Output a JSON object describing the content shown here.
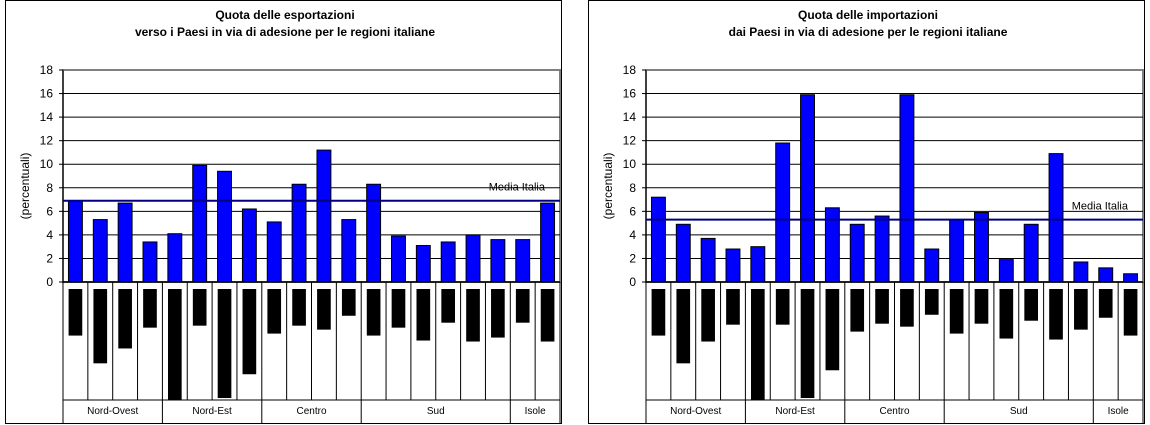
{
  "chart_data": [
    {
      "type": "bar",
      "title": [
        "Quota delle esportazioni",
        "verso i Paesi in via di adesione per le regioni italiane"
      ],
      "ylabel": "(percentuali)",
      "ylim": [
        0,
        18
      ],
      "yticks": [
        0,
        2,
        4,
        6,
        8,
        10,
        12,
        14,
        16,
        18
      ],
      "grid": true,
      "values": [
        6.9,
        5.3,
        6.7,
        3.4,
        4.1,
        9.9,
        9.4,
        6.2,
        5.1,
        8.3,
        11.2,
        5.3,
        8.3,
        3.9,
        3.1,
        3.4,
        4.0,
        3.6,
        3.6,
        6.7
      ],
      "label_lengths": [
        0.47,
        0.75,
        0.6,
        0.39,
        1.12,
        0.37,
        1.1,
        0.86,
        0.45,
        0.37,
        0.41,
        0.27,
        0.47,
        0.39,
        0.52,
        0.34,
        0.53,
        0.49,
        0.34,
        0.53
      ],
      "reference_line": {
        "value": 6.9,
        "label": "Media Italia"
      },
      "groups": [
        {
          "name": "Nord-Ovest",
          "count": 4
        },
        {
          "name": "Nord-Est",
          "count": 4
        },
        {
          "name": "Centro",
          "count": 4
        },
        {
          "name": "Sud",
          "count": 6
        },
        {
          "name": "Isole",
          "count": 2
        }
      ],
      "colors": {
        "bar": "#0000ff",
        "line": "#000080",
        "label_block": "#000000"
      }
    },
    {
      "type": "bar",
      "title": [
        "Quota delle importazioni",
        "dai Paesi in via di adesione per le regioni italiane"
      ],
      "ylabel": "(percentuali)",
      "ylim": [
        0,
        18
      ],
      "yticks": [
        0,
        2,
        4,
        6,
        8,
        10,
        12,
        14,
        16,
        18
      ],
      "grid": true,
      "values": [
        7.2,
        4.9,
        3.7,
        2.8,
        3.0,
        11.8,
        15.9,
        6.3,
        4.9,
        5.6,
        15.9,
        2.8,
        5.3,
        5.9,
        1.9,
        4.9,
        10.9,
        1.7,
        1.2,
        0.7
      ],
      "label_lengths": [
        0.47,
        0.75,
        0.53,
        0.36,
        1.12,
        0.36,
        1.1,
        0.82,
        0.43,
        0.35,
        0.38,
        0.26,
        0.45,
        0.35,
        0.5,
        0.32,
        0.51,
        0.41,
        0.29,
        0.47
      ],
      "reference_line": {
        "value": 5.3,
        "label": "Media Italia"
      },
      "groups": [
        {
          "name": "Nord-Ovest",
          "count": 4
        },
        {
          "name": "Nord-Est",
          "count": 4
        },
        {
          "name": "Centro",
          "count": 4
        },
        {
          "name": "Sud",
          "count": 6
        },
        {
          "name": "Isole",
          "count": 2
        }
      ],
      "colors": {
        "bar": "#0000ff",
        "line": "#000080",
        "label_block": "#000000"
      }
    }
  ]
}
